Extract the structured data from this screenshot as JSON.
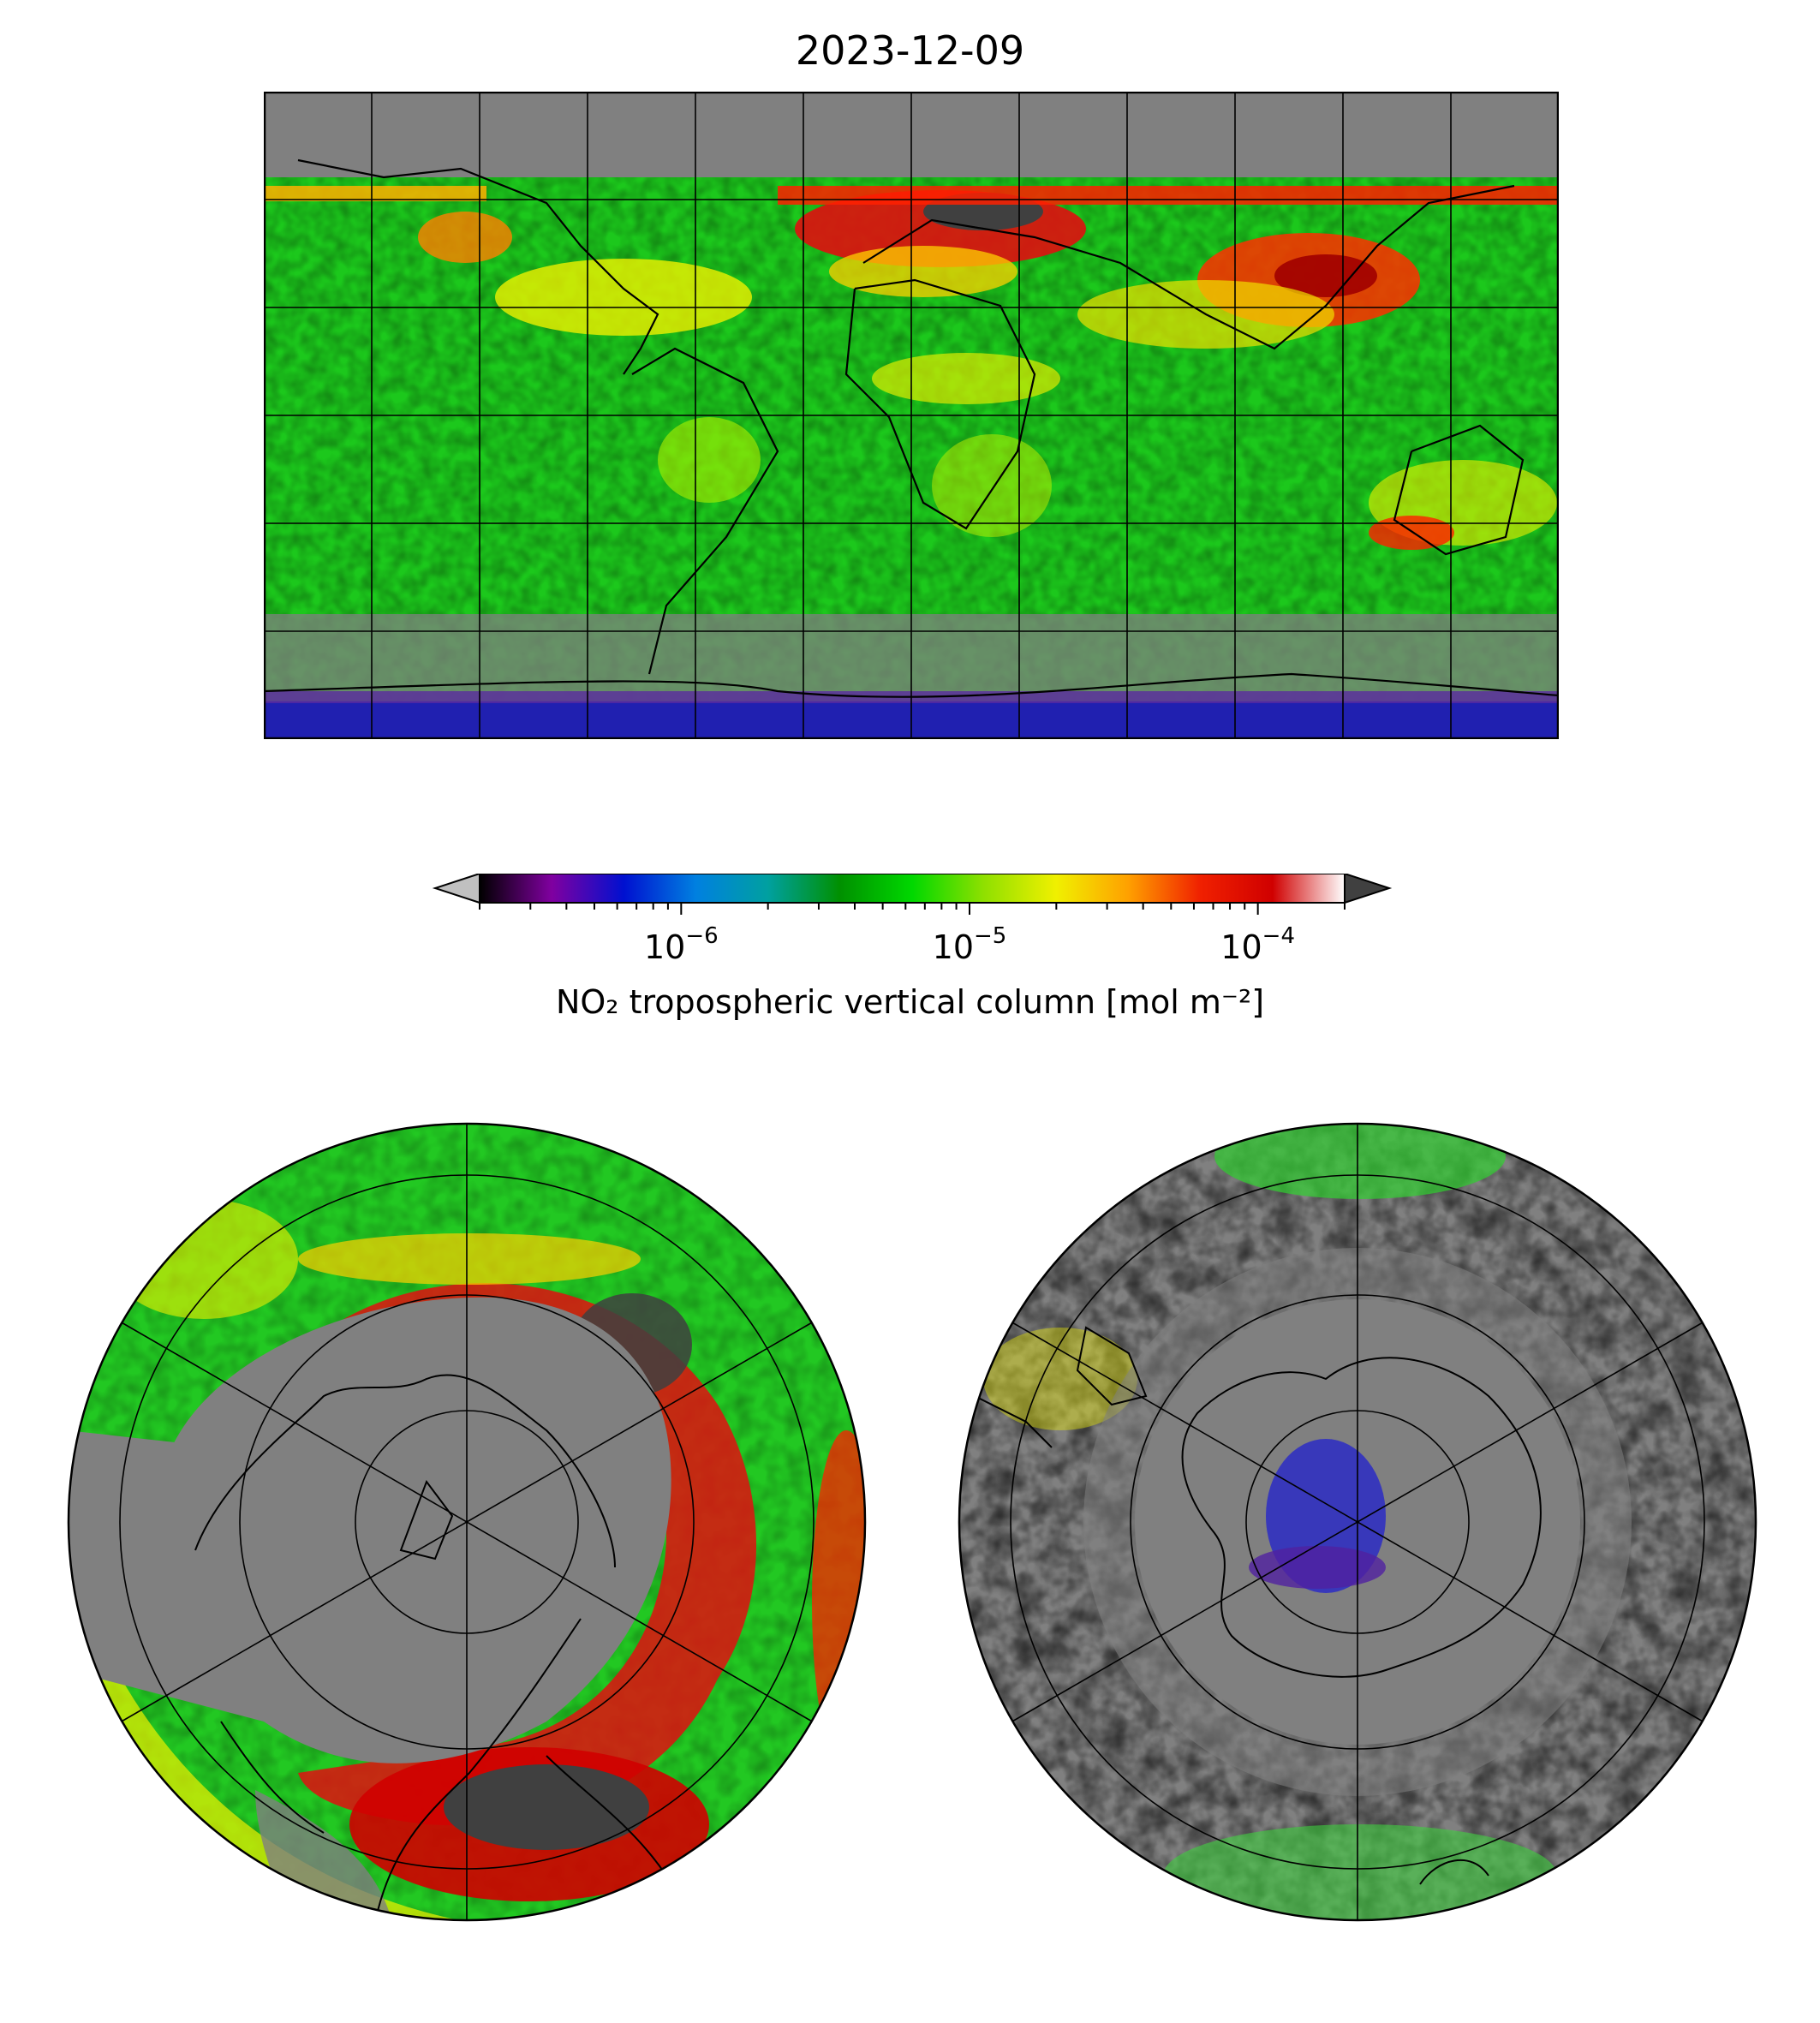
{
  "title": "2023-12-09",
  "colorbar": {
    "label": "NO₂ tropospheric vertical column [mol m⁻²]",
    "scale": "log",
    "range": [
      2e-07,
      0.0002
    ],
    "extend": "both",
    "under_color": "#c0c0c0",
    "over_color": "#404040",
    "colors": [
      "#000000",
      "#8000a0",
      "#0010d0",
      "#0080e0",
      "#00a0a0",
      "#009000",
      "#00d800",
      "#90e000",
      "#f0f000",
      "#ffa000",
      "#f02000",
      "#d00000",
      "#ffffff"
    ],
    "ticks": [
      {
        "base": "10",
        "exp": "−6",
        "value": 1e-06
      },
      {
        "base": "10",
        "exp": "−5",
        "value": 1e-05
      },
      {
        "base": "10",
        "exp": "−4",
        "value": 0.0001
      }
    ]
  },
  "maps": [
    {
      "name": "global-map",
      "projection": "PlateCarree",
      "gridlines": "30 deg"
    },
    {
      "name": "north-polar-map",
      "projection": "North Polar Stereographic",
      "gridlines": "30 deg"
    },
    {
      "name": "south-polar-map",
      "projection": "South Polar Stereographic",
      "gridlines": "30 deg"
    }
  ],
  "colors": {
    "no_data": "#808080",
    "coastline": "#000000"
  }
}
